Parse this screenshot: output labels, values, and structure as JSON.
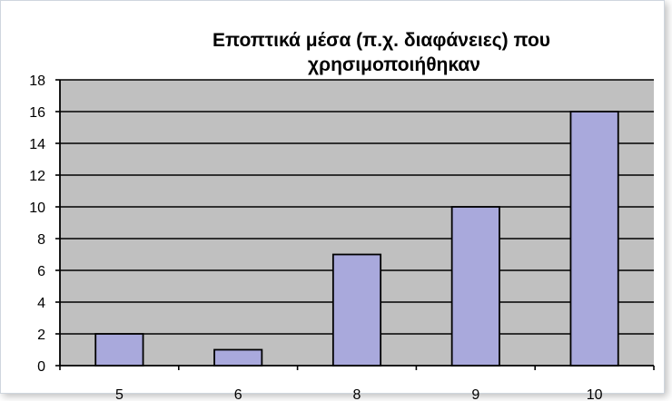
{
  "chart_data": {
    "type": "bar",
    "title_lines": [
      "Εποπτικά μέσα (π.χ. διαφάνειες) που",
      "χρησιμοποιήθηκαν"
    ],
    "categories": [
      "5",
      "6",
      "8",
      "9",
      "10"
    ],
    "values": [
      2,
      1,
      7,
      10,
      16
    ],
    "ylim": [
      0,
      18
    ],
    "y_ticks": [
      "0",
      "2",
      "4",
      "6",
      "8",
      "10",
      "12",
      "14",
      "16",
      "18"
    ],
    "grid": true,
    "legend": "none",
    "colors": {
      "plot_background": "#c0c0c0",
      "bar_fill": "#a9a9dc",
      "bar_stroke": "#000000",
      "grid": "#000000"
    }
  }
}
